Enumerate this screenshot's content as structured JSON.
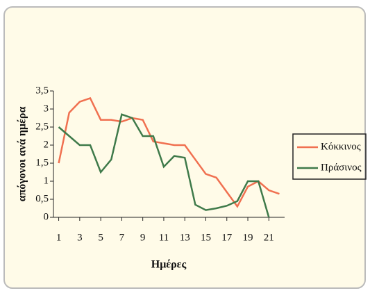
{
  "chart_data": {
    "type": "line",
    "x": [
      1,
      2,
      3,
      4,
      5,
      6,
      7,
      8,
      9,
      10,
      11,
      12,
      13,
      14,
      15,
      16,
      17,
      18,
      19,
      20,
      21,
      22
    ],
    "series": [
      {
        "name": "Κόκκινος",
        "color": "#f07050",
        "values": [
          1.5,
          2.9,
          3.2,
          3.3,
          2.7,
          2.7,
          2.65,
          2.75,
          2.7,
          2.1,
          2.05,
          2.0,
          2.0,
          1.6,
          1.2,
          1.1,
          0.7,
          0.3,
          0.85,
          1.0,
          0.75,
          0.65
        ]
      },
      {
        "name": "Πράσινος",
        "color": "#3f7a4a",
        "values": [
          2.5,
          2.25,
          2.0,
          2.0,
          1.25,
          1.6,
          2.85,
          2.75,
          2.25,
          2.25,
          1.4,
          1.7,
          1.65,
          0.35,
          0.2,
          0.25,
          0.32,
          0.45,
          1.0,
          1.0,
          0,
          null
        ]
      }
    ],
    "xlabel": "Ημέρες",
    "ylabel": "απόγονοι ανά ημέρα",
    "xlim": [
      0.5,
      22.5
    ],
    "xticks": [
      1,
      3,
      5,
      7,
      9,
      11,
      13,
      15,
      17,
      19,
      21
    ],
    "ylim": [
      0,
      3.5
    ],
    "yticks": [
      0,
      {
        "value": 0.5,
        "label": "0,5"
      },
      1,
      {
        "value": 1.5,
        "label": "1,5"
      },
      2,
      {
        "value": 2.5,
        "label": "2,5"
      },
      3,
      {
        "value": 3.5,
        "label": "3,5"
      }
    ],
    "legend": "right"
  }
}
